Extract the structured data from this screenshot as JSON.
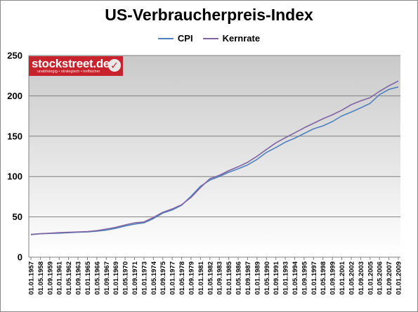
{
  "chart_data": {
    "type": "line",
    "title": "US-Verbraucherpreis-Index",
    "xlabel": "",
    "ylabel": "",
    "ylim": [
      0,
      250
    ],
    "yticks": [
      0,
      50,
      100,
      150,
      200,
      250
    ],
    "grid": "horizontal",
    "legend_position": "top",
    "x": [
      "01.01.1957",
      "01.05.1958",
      "01.09.1959",
      "01.01.1961",
      "01.05.1962",
      "01.09.1963",
      "01.01.1965",
      "01.05.1966",
      "01.09.1967",
      "01.01.1969",
      "01.05.1970",
      "01.09.1971",
      "01.01.1973",
      "01.05.1974",
      "01.09.1975",
      "01.01.1977",
      "01.05.1978",
      "01.09.1979",
      "01.01.1981",
      "01.05.1982",
      "01.09.1983",
      "01.01.1985",
      "01.05.1986",
      "01.09.1987",
      "01.01.1989",
      "01.05.1990",
      "01.09.1991",
      "01.01.1993",
      "01.05.1994",
      "01.09.1995",
      "01.01.1997",
      "01.05.1998",
      "01.09.1999",
      "01.01.2001",
      "01.05.2002",
      "01.09.2003",
      "01.01.2005",
      "01.05.2006",
      "01.09.2007",
      "01.01.2009"
    ],
    "series": [
      {
        "name": "CPI",
        "color": "#4f81bd",
        "values": [
          27.9,
          29.0,
          29.4,
          29.8,
          30.3,
          30.9,
          31.3,
          32.3,
          33.5,
          35.7,
          38.7,
          40.9,
          42.6,
          47.8,
          54.6,
          58.5,
          64.5,
          75.6,
          87.9,
          95.6,
          100.1,
          105.3,
          109.5,
          114.4,
          121.2,
          129.9,
          136.0,
          142.6,
          147.5,
          153.3,
          159.1,
          162.8,
          168.1,
          175.1,
          179.9,
          185.1,
          190.7,
          201.5,
          208.0,
          211.1
        ]
      },
      {
        "name": "Kernrate",
        "color": "#8064a2",
        "values": [
          28.3,
          29.1,
          29.7,
          30.4,
          30.8,
          31.4,
          31.8,
          32.9,
          34.8,
          37.0,
          40.0,
          42.6,
          43.6,
          49.2,
          55.7,
          59.8,
          65.1,
          74.1,
          86.3,
          97.3,
          101.5,
          107.2,
          112.1,
          117.6,
          125.1,
          133.5,
          141.7,
          148.1,
          154.1,
          160.4,
          165.9,
          171.6,
          176.5,
          182.2,
          189.0,
          193.8,
          197.7,
          205.6,
          212.5,
          218.4
        ]
      }
    ]
  },
  "logo": {
    "name": "stockstreet.de",
    "tagline": "unabhängig • strategisch • treffsicher"
  }
}
